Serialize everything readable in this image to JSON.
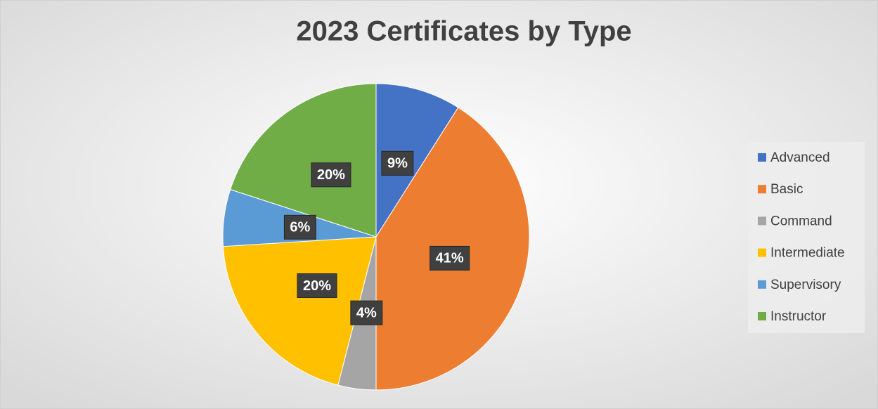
{
  "chart_data": {
    "type": "pie",
    "title": "2023 Certificates by Type",
    "categories": [
      "Advanced",
      "Basic",
      "Command",
      "Intermediate",
      "Supervisory",
      "Instructor"
    ],
    "values": [
      9,
      41,
      4,
      20,
      6,
      20
    ],
    "value_labels": [
      "9%",
      "41%",
      "4%",
      "20%",
      "6%",
      "20%"
    ],
    "colors": [
      "#4472c4",
      "#ed7d31",
      "#a5a5a5",
      "#ffc000",
      "#5b9bd5",
      "#70ad47"
    ],
    "legend": "right"
  }
}
